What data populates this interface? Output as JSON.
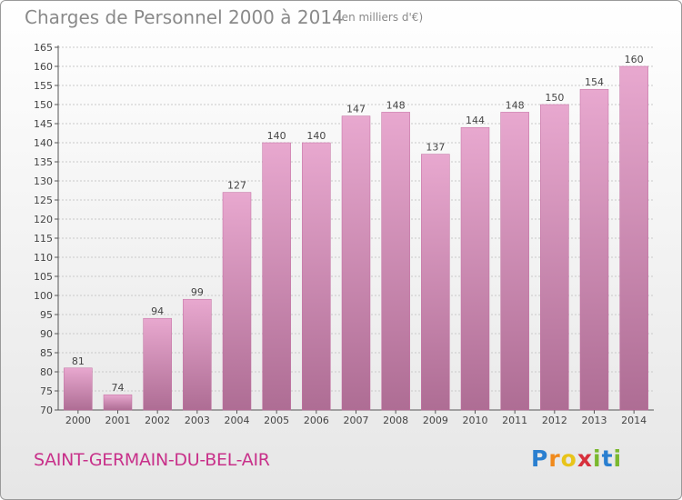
{
  "title": "Charges de Personnel 2000 à 2014",
  "subtitle": "(en milliers d'€)",
  "commune": "SAINT-GERMAIN-DU-BEL-AIR",
  "logo": {
    "text": "Proxiti",
    "letters": [
      {
        "ch": "P",
        "color": "#2a7fd0"
      },
      {
        "ch": "r",
        "color": "#f08a1c"
      },
      {
        "ch": "o",
        "color": "#e8c41a"
      },
      {
        "ch": "x",
        "color": "#d7303c"
      },
      {
        "ch": "i",
        "color": "#7ab82e"
      },
      {
        "ch": "t",
        "color": "#2a7fd0"
      },
      {
        "ch": "i",
        "color": "#7ab82e"
      }
    ]
  },
  "colors": {
    "bar_top": "#e8a8cf",
    "bar_bottom": "#ae6d94",
    "grid": "#c9c9c9",
    "axis": "#555555",
    "text": "#444444"
  },
  "chart_data": {
    "type": "bar",
    "categories": [
      "2000",
      "2001",
      "2002",
      "2003",
      "2004",
      "2005",
      "2006",
      "2007",
      "2008",
      "2009",
      "2010",
      "2011",
      "2012",
      "2013",
      "2014"
    ],
    "values": [
      81,
      74,
      94,
      99,
      127,
      140,
      140,
      147,
      148,
      137,
      144,
      148,
      150,
      154,
      160
    ],
    "ylim": [
      70,
      165
    ],
    "yticks": [
      70,
      75,
      80,
      85,
      90,
      95,
      100,
      105,
      110,
      115,
      120,
      125,
      130,
      135,
      140,
      145,
      150,
      155,
      160,
      165
    ],
    "grid": true,
    "xlabel": "",
    "ylabel": ""
  }
}
